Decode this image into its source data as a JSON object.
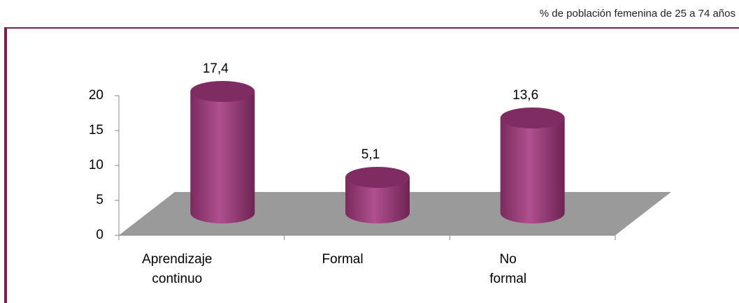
{
  "chart_data": {
    "type": "bar",
    "subtitle": "% de población femenina de 25 a 74 años",
    "categories": [
      "Aprendizaje continuo",
      "Formal",
      "No formal"
    ],
    "values": [
      17.4,
      5.1,
      13.6
    ],
    "value_labels": [
      "17,4",
      "5,1",
      "13,6"
    ],
    "color": "#a0407f",
    "ylim": [
      0,
      20
    ],
    "yticks": [
      0,
      5,
      10,
      15,
      20
    ]
  }
}
